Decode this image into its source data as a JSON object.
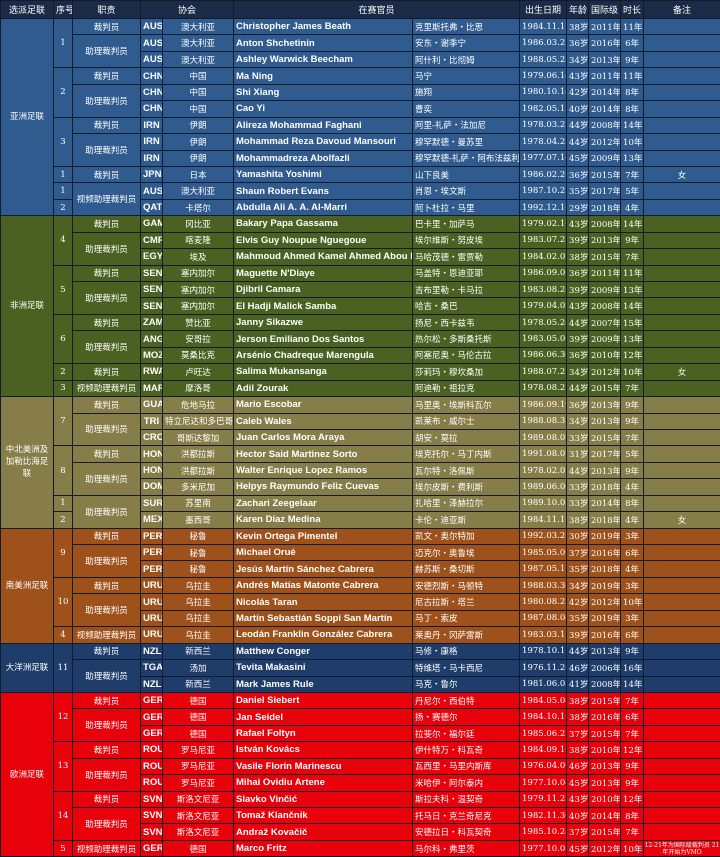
{
  "header": {
    "confederation": "选派足联",
    "seq": "序号",
    "role": "职责",
    "association": "协会",
    "officials": "在赛官员",
    "dob": "出生日期",
    "age": "年龄",
    "international_since": "国际级",
    "years": "时长",
    "note": "备注"
  },
  "colors": {
    "header": "#1b2b47"
  },
  "confederations": [
    {
      "name": "亚洲足联",
      "color": "#2f5b8e",
      "rows": [
        [
          "1",
          "裁判员",
          "AUS",
          "澳大利亚",
          "Christopher James Beath",
          "克里斯托弗・比思",
          "1984.11.17",
          "38岁",
          "2011年",
          "11年",
          ""
        ],
        [
          null,
          "助理裁判员",
          "AUS",
          "澳大利亚",
          "Anton Shchetinin",
          "安东・谢季宁",
          "1986.03.27",
          "36岁",
          "2016年",
          "6年",
          ""
        ],
        [
          null,
          null,
          "AUS",
          "澳大利亚",
          "Ashley Warwick Beecham",
          "阿什利・比彻姆",
          "1988.05.23",
          "34岁",
          "2013年",
          "9年",
          ""
        ],
        [
          "2",
          "裁判员",
          "CHN",
          "中国",
          "Ma Ning",
          "马宁",
          "1979.06.14",
          "43岁",
          "2011年",
          "11年",
          ""
        ],
        [
          null,
          "助理裁判员",
          "CHN",
          "中国",
          "Shi Xiang",
          "施翔",
          "1980.10.14",
          "42岁",
          "2014年",
          "8年",
          ""
        ],
        [
          null,
          null,
          "CHN",
          "中国",
          "Cao Yi",
          "曹奕",
          "1982.05.15",
          "40岁",
          "2014年",
          "8年",
          ""
        ],
        [
          "3",
          "裁判员",
          "IRN",
          "伊朗",
          "Alireza Mohammad Faghani",
          "阿里-礼萨・法加尼",
          "1978.03.21",
          "44岁",
          "2008年",
          "14年",
          ""
        ],
        [
          null,
          "助理裁判员",
          "IRN",
          "伊朗",
          "Mohammad Reza Davoud Mansouri",
          "穆罕默德・曼苏里",
          "1978.04.21",
          "44岁",
          "2012年",
          "10年",
          ""
        ],
        [
          null,
          null,
          "IRN",
          "伊朗",
          "Mohammadreza Abolfazli",
          "穆罕默德-礼萨・阿布法兹利",
          "1977.07.14",
          "45岁",
          "2009年",
          "13年",
          ""
        ],
        [
          "1",
          "裁判员",
          "JPN",
          "日本",
          "Yamashita Yoshimi",
          "山下良美",
          "1986.02.20",
          "36岁",
          "2015年",
          "7年",
          "女"
        ],
        [
          "1",
          "视频助理裁判员",
          "AUS",
          "澳大利亚",
          "Shaun Robert Evans",
          "肖恩・埃文斯",
          "1987.10.21",
          "35岁",
          "2017年",
          "5年",
          ""
        ],
        [
          "2",
          null,
          "QAT",
          "卡塔尔",
          "Abdulla Ali A. A. Al-Marri",
          "阿卜杜拉・马里",
          "1992.12.16",
          "29岁",
          "2018年",
          "4年",
          ""
        ]
      ]
    },
    {
      "name": "非洲足联",
      "color": "#4b6121",
      "rows": [
        [
          "4",
          "裁判员",
          "GAM",
          "冈比亚",
          "Bakary Papa Gassama",
          "巴卡里・加萨马",
          "1979.02.10",
          "43岁",
          "2008年",
          "14年",
          ""
        ],
        [
          null,
          "助理裁判员",
          "CMR",
          "喀麦隆",
          "Elvis Guy Noupue Nguegoue",
          "埃尔维斯・努皮埃",
          "1983.07.25",
          "39岁",
          "2013年",
          "9年",
          ""
        ],
        [
          null,
          null,
          "EGY",
          "埃及",
          "Mahmoud Ahmed Kamel Ahmed Abou El Regal",
          "马哈茂德・雷贾勒",
          "1984.02.02",
          "38岁",
          "2015年",
          "7年",
          ""
        ],
        [
          "5",
          "裁判员",
          "SEN",
          "塞内加尔",
          "Maguette N'Diaye",
          "马盖特・恩迪亚耶",
          "1986.09.01",
          "36岁",
          "2011年",
          "11年",
          ""
        ],
        [
          null,
          "助理裁判员",
          "SEN",
          "塞内加尔",
          "Djibril Camara",
          "吉布里勒・卡马拉",
          "1983.08.20",
          "39岁",
          "2009年",
          "13年",
          ""
        ],
        [
          null,
          null,
          "SEN",
          "塞内加尔",
          "El Hadji Malick Samba",
          "哈吉・桑巴",
          "1979.04.02",
          "43岁",
          "2008年",
          "14年",
          ""
        ],
        [
          "6",
          "裁判员",
          "ZAM",
          "赞比亚",
          "Janny Sikazwe",
          "扬尼・西卡兹韦",
          "1978.05.26",
          "44岁",
          "2007年",
          "15年",
          ""
        ],
        [
          null,
          "助理裁判员",
          "ANG",
          "安哥拉",
          "Jerson Emiliano Dos Santos",
          "热尔松・多斯桑托斯",
          "1983.05.01",
          "39岁",
          "2009年",
          "13年",
          ""
        ],
        [
          null,
          null,
          "MOZ",
          "莫桑比克",
          "Arsénio Chadreque Marengula",
          "阿塞尼奥・马伦古拉",
          "1986.06.30",
          "36岁",
          "2010年",
          "12年",
          ""
        ],
        [
          "2",
          "裁判员",
          "RWA",
          "卢旺达",
          "Salima Mukansanga",
          "莎莉玛・穆坎桑加",
          "1988.07.25",
          "34岁",
          "2012年",
          "10年",
          "女"
        ],
        [
          "3",
          "视频助理裁判员",
          "MAR",
          "摩洛哥",
          "Adil Zourak",
          "阿迪勒・祖拉克",
          "1978.08.25",
          "44岁",
          "2015年",
          "7年",
          ""
        ]
      ]
    },
    {
      "name": "中北美洲及加勒比海足联",
      "color": "#877d49",
      "rows": [
        [
          "7",
          "裁判员",
          "GUA",
          "危地马拉",
          "Mario Escobar",
          "马里奥・埃斯科瓦尔",
          "1986.09.19",
          "36岁",
          "2013年",
          "9年",
          ""
        ],
        [
          null,
          "助理裁判员",
          "TRI",
          "特立尼达和多巴哥",
          "Caleb Wales",
          "凯莱布・威尔士",
          "1988.08.31",
          "34岁",
          "2013年",
          "9年",
          ""
        ],
        [
          null,
          null,
          "CRC",
          "哥斯达黎加",
          "Juan Carlos Mora Araya",
          "胡安・莫拉",
          "1989.08.05",
          "33岁",
          "2015年",
          "7年",
          ""
        ],
        [
          "8",
          "裁判员",
          "HON",
          "洪都拉斯",
          "Hector Said Martinez Sorto",
          "埃克托尔・马丁内斯",
          "1991.08.07",
          "31岁",
          "2017年",
          "5年",
          ""
        ],
        [
          null,
          "助理裁判员",
          "HON",
          "洪都拉斯",
          "Walter Enrique Lopez Ramos",
          "瓦尔特・洛佩斯",
          "1978.02.02",
          "44岁",
          "2013年",
          "9年",
          ""
        ],
        [
          null,
          null,
          "DOM",
          "多米尼加",
          "Helpys Raymundo Feliz Cuevas",
          "埃尔皮斯・费利斯",
          "1989.06.06",
          "33岁",
          "2018年",
          "4年",
          ""
        ],
        [
          "1",
          "助理裁判员",
          "SUR",
          "苏里南",
          "Zachari Zeegelaar",
          "扎哈里・泽赫拉尔",
          "1989.10.03",
          "33岁",
          "2014年",
          "8年",
          ""
        ],
        [
          "2",
          null,
          "MEX",
          "墨西哥",
          "Karen Díaz Medina",
          "卡伦・迪亚斯",
          "1984.11.10",
          "38岁",
          "2018年",
          "4年",
          "女"
        ]
      ]
    },
    {
      "name": "南美洲足联",
      "color": "#9e511b",
      "rows": [
        [
          "9",
          "裁判员",
          "PER",
          "秘鲁",
          "Kevin Ortega Pimentel",
          "凯文・奥尔特加",
          "1992.03.26",
          "30岁",
          "2019年",
          "3年",
          ""
        ],
        [
          null,
          "助理裁判员",
          "PER",
          "秘鲁",
          "Michael Orué",
          "迈克尔・奥鲁埃",
          "1985.05.01",
          "37岁",
          "2016年",
          "6年",
          ""
        ],
        [
          null,
          null,
          "PER",
          "秘鲁",
          "Jesús Martín Sánchez Cabrera",
          "赫苏斯・桑切斯",
          "1987.05.11",
          "35岁",
          "2018年",
          "4年",
          ""
        ],
        [
          "10",
          "裁判员",
          "URU",
          "乌拉圭",
          "Andrés Matías Matonte Cabrera",
          "安德烈斯・马顿特",
          "1988.03.30",
          "34岁",
          "2019年",
          "3年",
          ""
        ],
        [
          null,
          "助理裁判员",
          "URU",
          "乌拉圭",
          "Nicolás Taran",
          "尼古拉斯・塔兰",
          "1980.08.27",
          "42岁",
          "2012年",
          "10年",
          ""
        ],
        [
          null,
          null,
          "URU",
          "乌拉圭",
          "Martín Sebastián Soppi San Martín",
          "马丁・索皮",
          "1987.08.04",
          "35岁",
          "2019年",
          "3年",
          ""
        ],
        [
          "4",
          "视频助理裁判员",
          "URU",
          "乌拉圭",
          "Leodán Franklin González Cabrera",
          "莱奥丹・冈萨雷斯",
          "1983.03.11",
          "39岁",
          "2016年",
          "6年",
          ""
        ]
      ]
    },
    {
      "name": "大洋洲足联",
      "color": "#1e3d6b",
      "rows": [
        [
          "11",
          "裁判员",
          "NZL",
          "新西兰",
          "Matthew Conger",
          "马修・康格",
          "1978.10.11",
          "44岁",
          "2013年",
          "9年",
          ""
        ],
        [
          null,
          "助理裁判员",
          "TGA",
          "汤加",
          "Tevita Makasini",
          "特维塔・马卡西尼",
          "1976.11.26",
          "46岁",
          "2006年",
          "16年",
          ""
        ],
        [
          null,
          null,
          "NZL",
          "新西兰",
          "Mark James Rule",
          "马克・鲁尔",
          "1981.06.08",
          "41岁",
          "2008年",
          "14年",
          ""
        ]
      ]
    },
    {
      "name": "欧洲足联",
      "color": "#e8000b",
      "rows": [
        [
          "12",
          "裁判员",
          "GER",
          "德国",
          "Daniel Siebert",
          "丹尼尔・西伯特",
          "1984.05.04",
          "38岁",
          "2015年",
          "7年",
          ""
        ],
        [
          null,
          "助理裁判员",
          "GER",
          "德国",
          "Jan Seidel",
          "扬・赛德尔",
          "1984.10.10",
          "38岁",
          "2016年",
          "6年",
          ""
        ],
        [
          null,
          null,
          "GER",
          "德国",
          "Rafael Foltyn",
          "拉斐尔・福尔廷",
          "1985.06.21",
          "37岁",
          "2015年",
          "7年",
          ""
        ],
        [
          "13",
          "裁判员",
          "ROU",
          "罗马尼亚",
          "István Kovács",
          "伊什特万・科瓦奇",
          "1984.09.16",
          "38岁",
          "2010年",
          "12年",
          ""
        ],
        [
          null,
          "助理裁判员",
          "ROU",
          "罗马尼亚",
          "Vasile Florin Marinescu",
          "瓦西里・马里内斯库",
          "1976.04.06",
          "46岁",
          "2013年",
          "9年",
          ""
        ],
        [
          null,
          null,
          "ROU",
          "罗马尼亚",
          "Mihai Ovidiu Artene",
          "米哈伊・阿尔泰内",
          "1977.10.04",
          "45岁",
          "2013年",
          "9年",
          ""
        ],
        [
          "14",
          "裁判员",
          "SVN",
          "斯洛文尼亚",
          "Slavko Vinčić",
          "斯拉夫科・温契奇",
          "1979.11.25",
          "43岁",
          "2010年",
          "12年",
          ""
        ],
        [
          null,
          "助理裁判员",
          "SVN",
          "斯洛文尼亚",
          "Tomaž Klančnik",
          "托马日・克兰奇尼克",
          "1982.11.30",
          "40岁",
          "2014年",
          "8年",
          ""
        ],
        [
          null,
          null,
          "SVN",
          "斯洛文尼亚",
          "Andraž Kovačič",
          "安德拉日・科瓦契奇",
          "1985.10.24",
          "37岁",
          "2015年",
          "7年",
          ""
        ],
        [
          "5",
          "视频助理裁判员",
          "GER",
          "德国",
          "Marco Fritz",
          "马尔科・弗里茨",
          "1977.10.03",
          "45岁",
          "2012年",
          "10年",
          "12-21年为国际级裁判员 21年开始为VMO"
        ]
      ]
    }
  ]
}
